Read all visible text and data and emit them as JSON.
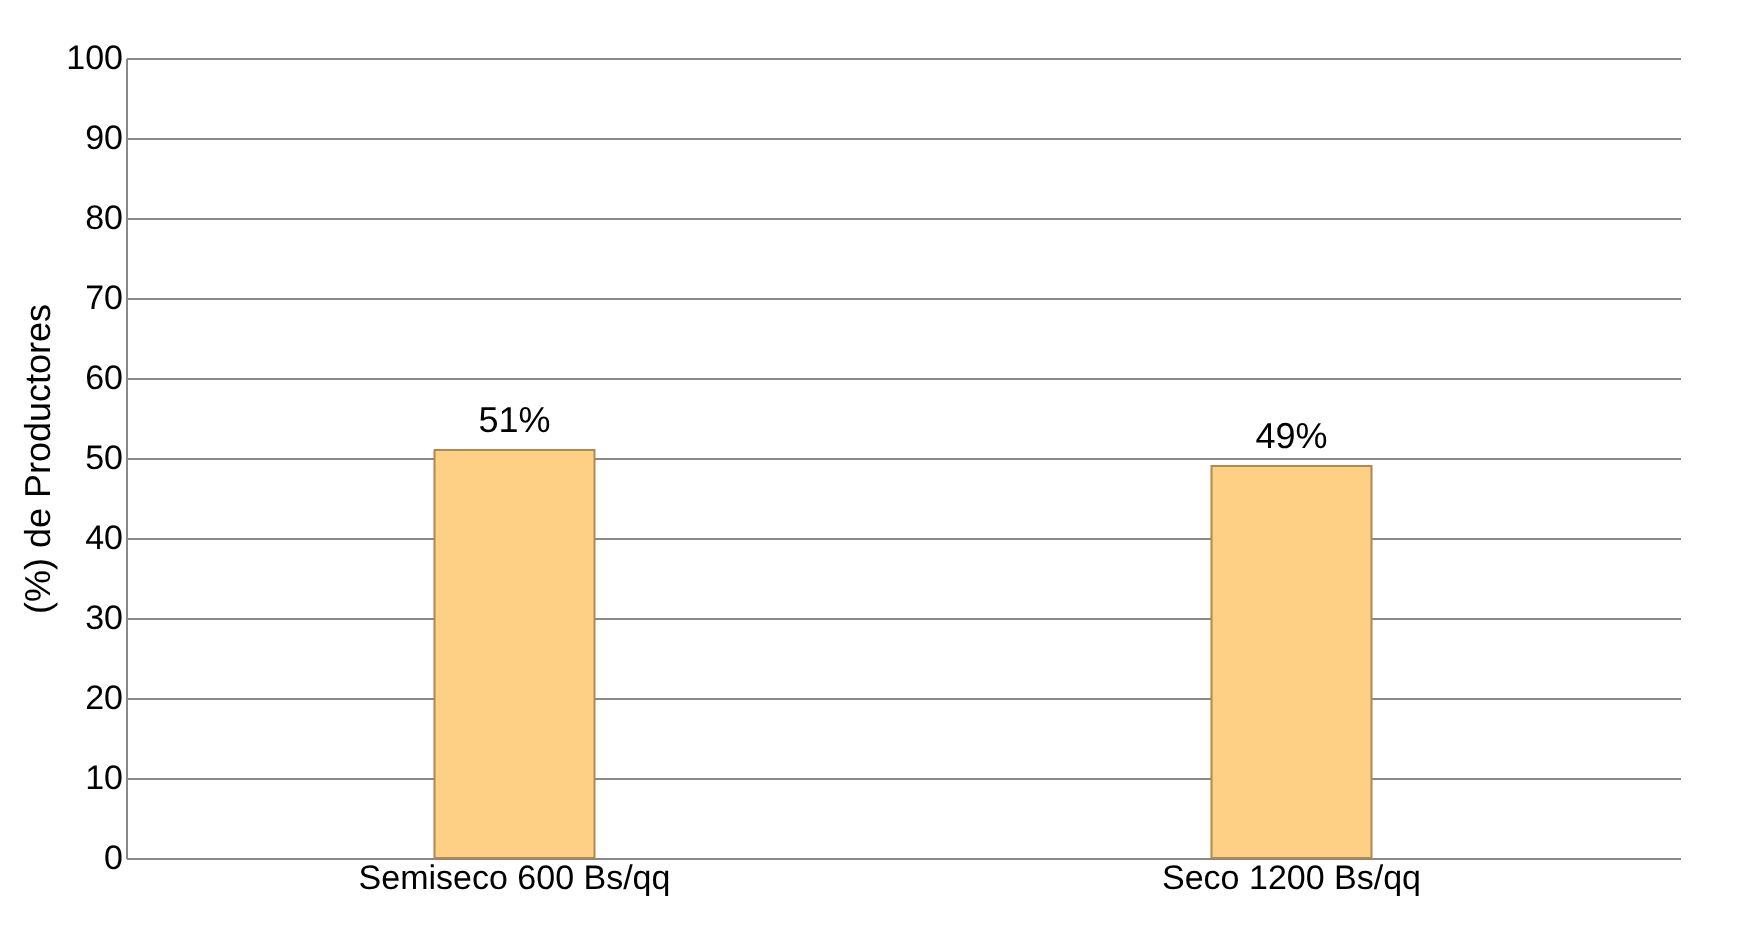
{
  "chart_data": {
    "type": "bar",
    "categories": [
      "Semiseco  600 Bs/qq",
      "Seco  1200 Bs/qq"
    ],
    "values": [
      51,
      49
    ],
    "value_labels": [
      "51%",
      "49%"
    ],
    "color": "#fdd085",
    "ylabel": "(%) de Productores",
    "ylim": [
      0,
      100
    ],
    "yticks": [
      0,
      10,
      20,
      30,
      40,
      50,
      60,
      70,
      80,
      90,
      100
    ],
    "grid": "y"
  }
}
